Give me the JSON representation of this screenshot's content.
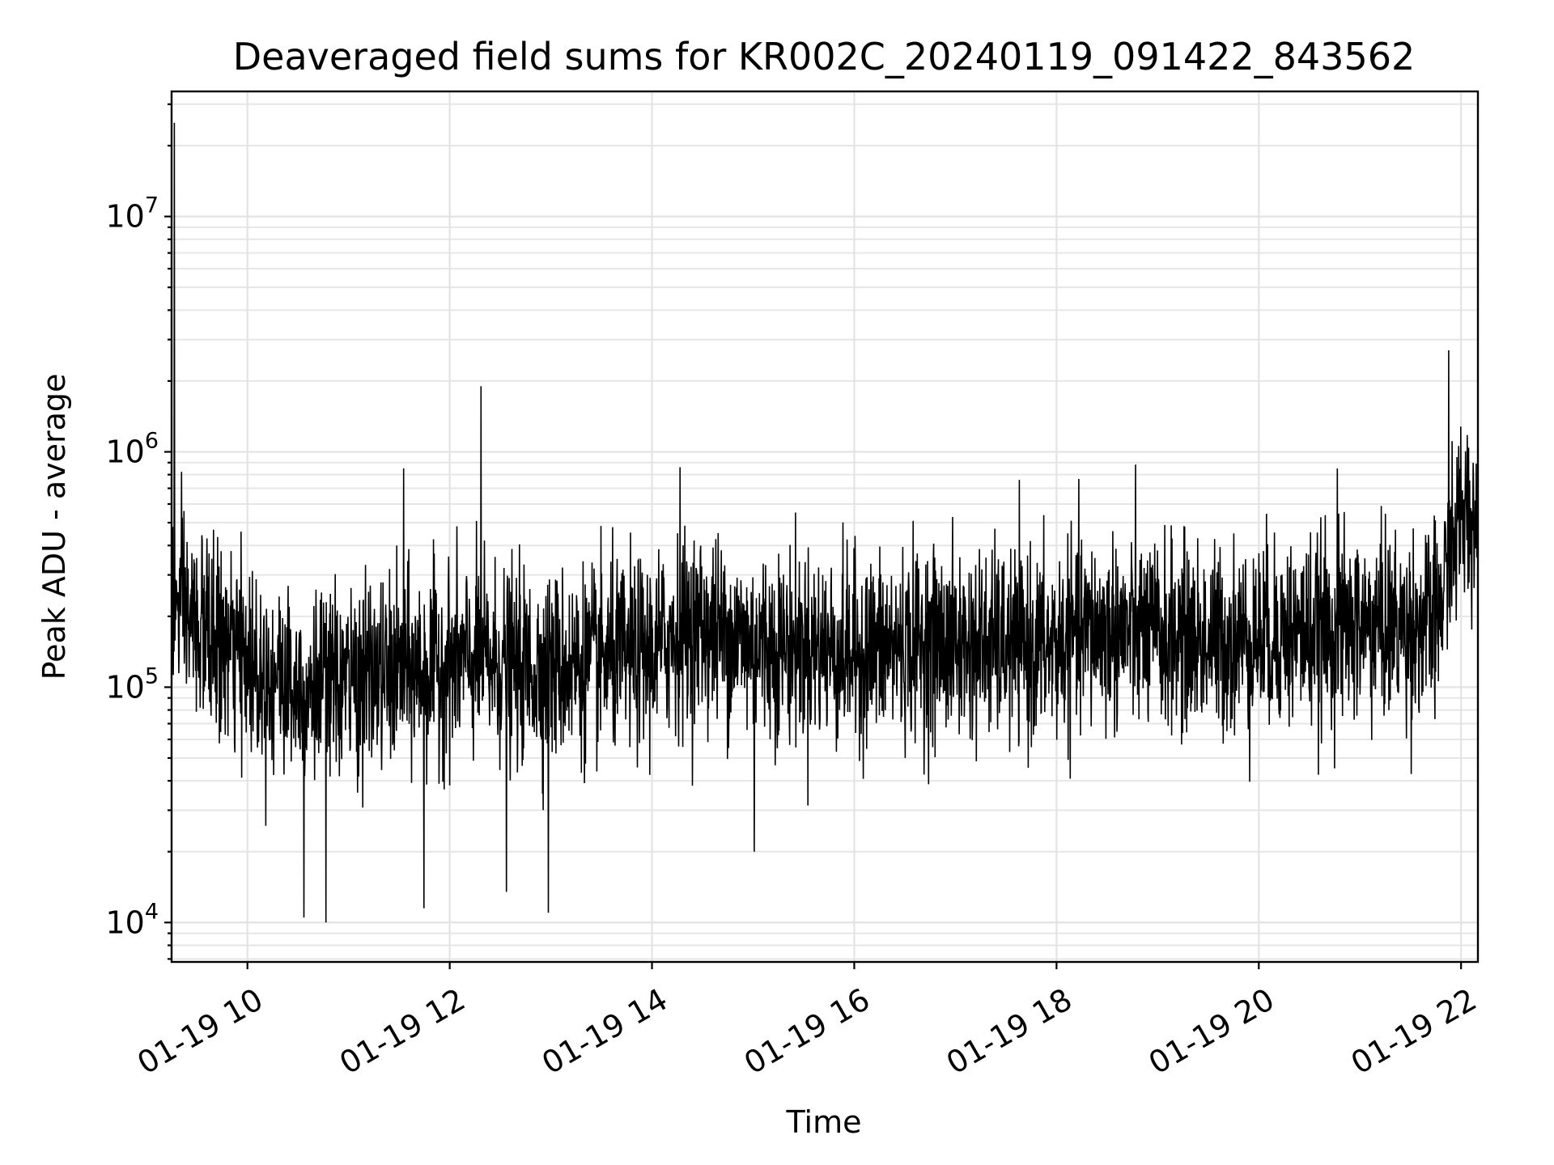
{
  "chart_data": {
    "type": "line",
    "title": "Deaveraged field sums for KR002C_20240119_091422_843562",
    "xlabel": "Time",
    "ylabel": "Peak ADU - average",
    "yscale": "log",
    "grid": true,
    "legend": "none",
    "line_color": "#000000",
    "xlim": [
      "2024-01-19 09:15",
      "2024-01-19 22:10"
    ],
    "ylim": [
      6800,
      34000000
    ],
    "x_ticks": [
      {
        "value": "2024-01-19 10:00",
        "label": "01-19 10"
      },
      {
        "value": "2024-01-19 12:00",
        "label": "01-19 12"
      },
      {
        "value": "2024-01-19 14:00",
        "label": "01-19 14"
      },
      {
        "value": "2024-01-19 16:00",
        "label": "01-19 16"
      },
      {
        "value": "2024-01-19 18:00",
        "label": "01-19 18"
      },
      {
        "value": "2024-01-19 20:00",
        "label": "01-19 20"
      },
      {
        "value": "2024-01-19 22:00",
        "label": "01-19 22"
      }
    ],
    "y_ticks": [
      {
        "value": 10000,
        "base": "10",
        "exp": "4"
      },
      {
        "value": 100000,
        "base": "10",
        "exp": "5"
      },
      {
        "value": 1000000,
        "base": "10",
        "exp": "6"
      },
      {
        "value": 10000000,
        "base": "10",
        "exp": "7"
      }
    ],
    "series": [
      {
        "x": [
          "2024-01-19 09:15",
          "2024-01-19 09:30",
          "2024-01-19 09:45",
          "2024-01-19 10:00",
          "2024-01-19 10:15",
          "2024-01-19 10:30",
          "2024-01-19 10:45",
          "2024-01-19 11:00",
          "2024-01-19 11:15",
          "2024-01-19 11:30",
          "2024-01-19 11:45",
          "2024-01-19 12:00",
          "2024-01-19 12:15",
          "2024-01-19 12:30",
          "2024-01-19 12:45",
          "2024-01-19 13:00",
          "2024-01-19 13:15",
          "2024-01-19 13:30",
          "2024-01-19 13:45",
          "2024-01-19 14:00",
          "2024-01-19 14:15",
          "2024-01-19 14:30",
          "2024-01-19 14:45",
          "2024-01-19 15:00",
          "2024-01-19 15:15",
          "2024-01-19 15:30",
          "2024-01-19 15:45",
          "2024-01-19 16:00",
          "2024-01-19 16:15",
          "2024-01-19 16:30",
          "2024-01-19 16:45",
          "2024-01-19 17:00",
          "2024-01-19 17:15",
          "2024-01-19 17:30",
          "2024-01-19 17:45",
          "2024-01-19 18:00",
          "2024-01-19 18:15",
          "2024-01-19 18:30",
          "2024-01-19 18:45",
          "2024-01-19 19:00",
          "2024-01-19 19:15",
          "2024-01-19 19:30",
          "2024-01-19 19:45",
          "2024-01-19 20:00",
          "2024-01-19 20:15",
          "2024-01-19 20:30",
          "2024-01-19 20:45",
          "2024-01-19 21:00",
          "2024-01-19 21:15",
          "2024-01-19 21:30",
          "2024-01-19 21:45",
          "2024-01-19 22:00",
          "2024-01-19 22:10"
        ],
        "y": [
          230000,
          180000,
          150000,
          130000,
          110000,
          105000,
          100000,
          105000,
          110000,
          115000,
          120000,
          125000,
          130000,
          125000,
          120000,
          120000,
          125000,
          130000,
          135000,
          140000,
          170000,
          180000,
          165000,
          155000,
          150000,
          150000,
          145000,
          140000,
          145000,
          150000,
          155000,
          150000,
          150000,
          150000,
          145000,
          150000,
          170000,
          175000,
          170000,
          165000,
          160000,
          155000,
          160000,
          165000,
          170000,
          170000,
          175000,
          180000,
          180000,
          180000,
          185000,
          550000,
          500000
        ],
        "spikes": [
          {
            "x": "2024-01-19 09:17",
            "y": 25000000
          },
          {
            "x": "2024-01-19 12:19",
            "y": 1900000
          },
          {
            "x": "2024-01-19 21:53",
            "y": 2700000
          },
          {
            "x": "2024-01-19 10:34",
            "y": 10500
          },
          {
            "x": "2024-01-19 10:47",
            "y": 10000
          },
          {
            "x": "2024-01-19 11:45",
            "y": 11500
          },
          {
            "x": "2024-01-19 12:34",
            "y": 13500
          },
          {
            "x": "2024-01-19 12:59",
            "y": 11000
          },
          {
            "x": "2024-01-19 15:01",
            "y": 20000
          },
          {
            "x": "2024-01-19 11:33",
            "y": 850000
          },
          {
            "x": "2024-01-19 14:17",
            "y": 860000
          },
          {
            "x": "2024-01-19 20:47",
            "y": 850000
          }
        ]
      }
    ]
  }
}
